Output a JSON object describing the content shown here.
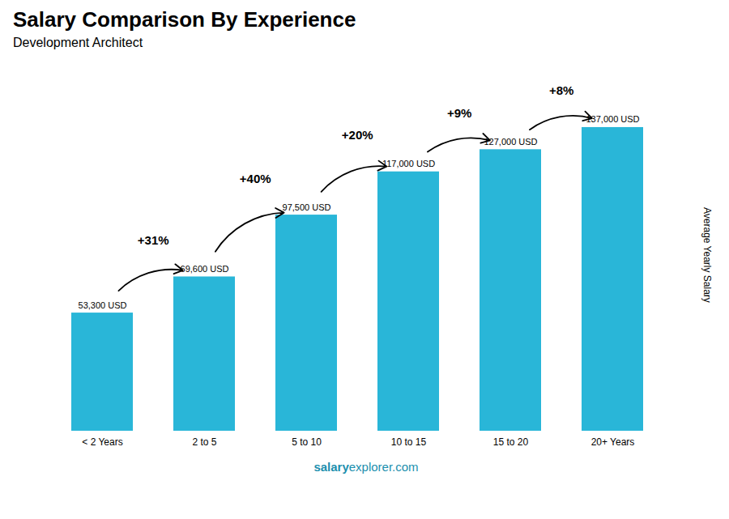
{
  "chart_data": {
    "type": "bar",
    "title": "Salary Comparison By Experience",
    "subtitle": "Development Architect",
    "ylabel": "Average Yearly Salary",
    "caption": [
      "salary",
      "explorer.com"
    ],
    "categories": [
      "< 2 Years",
      "2 to 5",
      "5 to 10",
      "10 to 15",
      "15 to 20",
      "20+ Years"
    ],
    "values": [
      53300,
      69600,
      97500,
      117000,
      127000,
      137000
    ],
    "value_labels": [
      "53,300 USD",
      "69,600 USD",
      "97,500 USD",
      "117,000 USD",
      "127,000 USD",
      "137,000 USD"
    ],
    "data_labels": true,
    "annotations": [
      "+31%",
      "+40%",
      "+20%",
      "+9%",
      "+8%"
    ],
    "color": "#29b6d8",
    "ylim": [
      0,
      160000
    ],
    "tick_labels": "x"
  }
}
